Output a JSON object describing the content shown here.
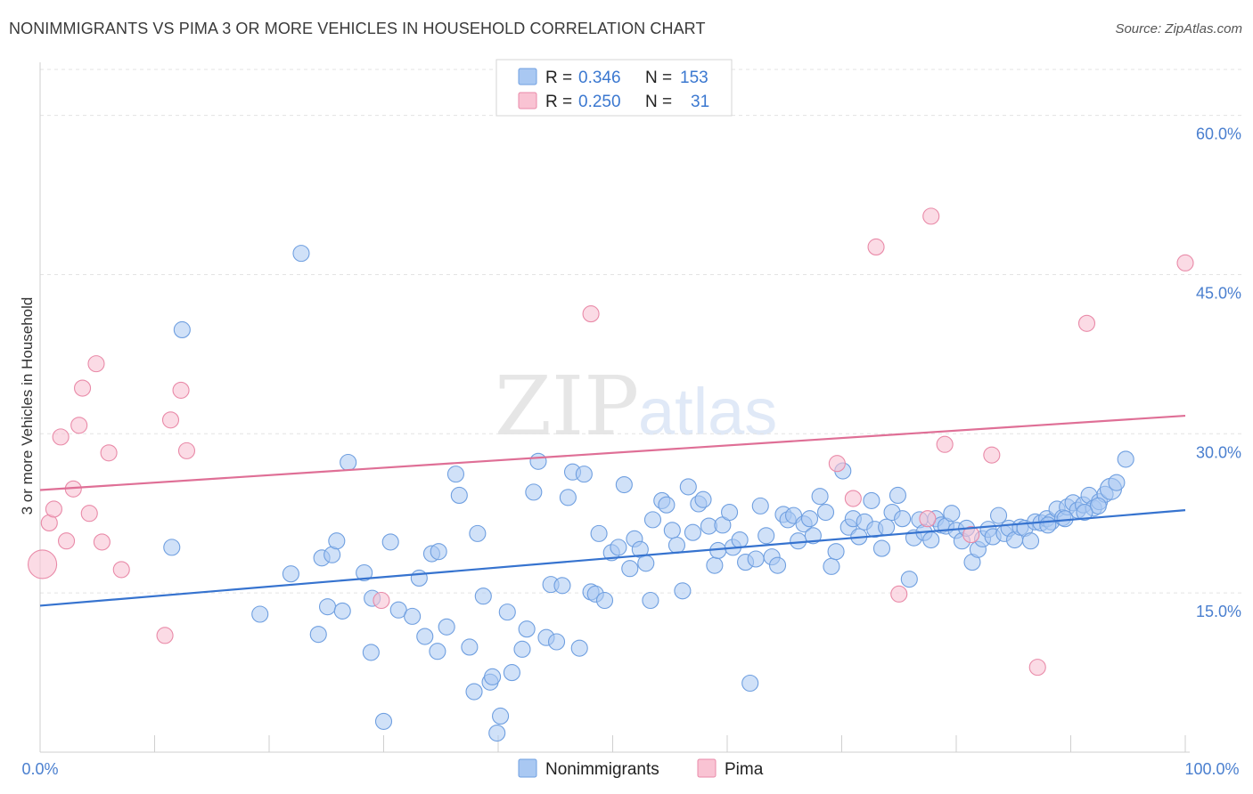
{
  "title": "NONIMMIGRANTS VS PIMA 3 OR MORE VEHICLES IN HOUSEHOLD CORRELATION CHART",
  "source": "Source: ZipAtlas.com",
  "watermark": {
    "part1": "ZIP",
    "part2": "atlas"
  },
  "legend": {
    "rows": [
      {
        "r_label": "R =",
        "r_value": "0.346",
        "n_label": "N =",
        "n_value": "153",
        "color": "#a9c8f2",
        "stroke": "#6f9fe0"
      },
      {
        "r_label": "R =",
        "r_value": "0.250",
        "n_label": "N =",
        "n_value": "31",
        "color": "#f9c3d3",
        "stroke": "#e98aa8"
      }
    ]
  },
  "bottom_legend": [
    {
      "label": "Nonimmigrants",
      "color": "#a9c8f2",
      "stroke": "#6f9fe0"
    },
    {
      "label": "Pima",
      "color": "#f9c3d3",
      "stroke": "#e98aa8"
    }
  ],
  "chart_data": {
    "type": "scatter",
    "title": "NONIMMIGRANTS VS PIMA 3 OR MORE VEHICLES IN HOUSEHOLD CORRELATION CHART",
    "xlabel": "",
    "ylabel": "3 or more Vehicles in Household",
    "xlim": [
      0,
      100
    ],
    "ylim": [
      0,
      65
    ],
    "x_tick_labels": [
      "0.0%",
      "100.0%"
    ],
    "y_ticks": [
      15,
      30,
      45,
      60
    ],
    "y_tick_labels": [
      "15.0%",
      "30.0%",
      "45.0%",
      "60.0%"
    ],
    "grid": true,
    "legend_position": "top-center",
    "series": [
      {
        "name": "Nonimmigrants",
        "color": "#6f9fe0",
        "fill": "#a9c8f2",
        "trend": {
          "x": [
            0,
            100
          ],
          "y": [
            13.8,
            22.8
          ]
        },
        "points": [
          [
            11.5,
            19.3
          ],
          [
            22.8,
            47.0
          ],
          [
            12.4,
            39.8
          ],
          [
            19.2,
            13.0
          ],
          [
            21.9,
            16.8
          ],
          [
            24.3,
            11.1
          ],
          [
            24.6,
            18.3
          ],
          [
            25.5,
            18.6
          ],
          [
            25.1,
            13.7
          ],
          [
            26.4,
            13.3
          ],
          [
            25.9,
            19.9
          ],
          [
            26.9,
            27.3
          ],
          [
            28.3,
            16.9
          ],
          [
            29.0,
            14.5
          ],
          [
            28.9,
            9.4
          ],
          [
            30.0,
            2.9
          ],
          [
            30.6,
            19.8
          ],
          [
            31.3,
            13.4
          ],
          [
            32.5,
            12.8
          ],
          [
            33.1,
            16.4
          ],
          [
            33.6,
            10.9
          ],
          [
            34.2,
            18.7
          ],
          [
            34.8,
            18.9
          ],
          [
            34.7,
            9.5
          ],
          [
            35.5,
            11.8
          ],
          [
            36.3,
            26.2
          ],
          [
            36.6,
            24.2
          ],
          [
            37.5,
            9.9
          ],
          [
            37.9,
            5.7
          ],
          [
            38.2,
            20.6
          ],
          [
            38.7,
            14.7
          ],
          [
            39.3,
            6.6
          ],
          [
            39.5,
            7.1
          ],
          [
            40.2,
            3.4
          ],
          [
            39.9,
            1.8
          ],
          [
            40.8,
            13.2
          ],
          [
            41.2,
            7.5
          ],
          [
            42.1,
            9.7
          ],
          [
            42.5,
            11.6
          ],
          [
            43.1,
            24.5
          ],
          [
            43.5,
            27.4
          ],
          [
            44.2,
            10.8
          ],
          [
            44.6,
            15.8
          ],
          [
            45.1,
            10.4
          ],
          [
            45.6,
            15.7
          ],
          [
            46.1,
            24.0
          ],
          [
            46.5,
            26.4
          ],
          [
            47.1,
            9.8
          ],
          [
            47.5,
            26.2
          ],
          [
            48.1,
            15.1
          ],
          [
            48.5,
            14.9
          ],
          [
            48.8,
            20.6
          ],
          [
            49.3,
            14.3
          ],
          [
            49.9,
            18.8
          ],
          [
            50.5,
            19.3
          ],
          [
            51.0,
            25.2
          ],
          [
            51.5,
            17.3
          ],
          [
            51.9,
            20.1
          ],
          [
            52.4,
            19.1
          ],
          [
            52.9,
            17.8
          ],
          [
            53.3,
            14.3
          ],
          [
            53.5,
            21.9
          ],
          [
            54.3,
            23.7
          ],
          [
            54.7,
            23.3
          ],
          [
            55.2,
            20.9
          ],
          [
            55.6,
            19.5
          ],
          [
            56.1,
            15.2
          ],
          [
            56.6,
            25.0
          ],
          [
            57.0,
            20.7
          ],
          [
            57.5,
            23.4
          ],
          [
            57.9,
            23.8
          ],
          [
            58.4,
            21.3
          ],
          [
            58.9,
            17.6
          ],
          [
            59.2,
            19.0
          ],
          [
            59.6,
            21.4
          ],
          [
            60.2,
            22.6
          ],
          [
            60.5,
            19.3
          ],
          [
            61.1,
            20.0
          ],
          [
            61.6,
            17.9
          ],
          [
            62.0,
            6.5
          ],
          [
            62.5,
            18.2
          ],
          [
            62.9,
            23.2
          ],
          [
            63.4,
            20.4
          ],
          [
            63.9,
            18.4
          ],
          [
            64.4,
            17.6
          ],
          [
            64.9,
            22.4
          ],
          [
            65.3,
            21.9
          ],
          [
            65.8,
            22.3
          ],
          [
            66.2,
            19.9
          ],
          [
            66.7,
            21.5
          ],
          [
            67.2,
            22.0
          ],
          [
            67.5,
            20.4
          ],
          [
            68.1,
            24.1
          ],
          [
            68.6,
            22.6
          ],
          [
            69.1,
            17.5
          ],
          [
            69.5,
            18.9
          ],
          [
            70.1,
            26.5
          ],
          [
            70.6,
            21.2
          ],
          [
            71.0,
            22.0
          ],
          [
            71.5,
            20.3
          ],
          [
            72.0,
            21.7
          ],
          [
            72.6,
            23.7
          ],
          [
            72.9,
            21.0
          ],
          [
            73.5,
            19.2
          ],
          [
            73.9,
            21.2
          ],
          [
            74.4,
            22.6
          ],
          [
            74.9,
            24.2
          ],
          [
            75.3,
            22.0
          ],
          [
            75.9,
            16.3
          ],
          [
            76.3,
            20.2
          ],
          [
            76.8,
            21.9
          ],
          [
            77.2,
            20.7
          ],
          [
            77.8,
            20.0
          ],
          [
            78.2,
            22.0
          ],
          [
            78.7,
            21.4
          ],
          [
            79.1,
            21.3
          ],
          [
            79.6,
            22.5
          ],
          [
            80.0,
            20.9
          ],
          [
            80.5,
            19.9
          ],
          [
            80.9,
            21.1
          ],
          [
            81.4,
            17.9
          ],
          [
            81.9,
            19.1
          ],
          [
            82.3,
            20.1
          ],
          [
            82.8,
            21.0
          ],
          [
            83.2,
            20.3
          ],
          [
            83.7,
            22.3
          ],
          [
            84.2,
            20.6
          ],
          [
            84.6,
            21.1
          ],
          [
            85.1,
            20.0
          ],
          [
            85.6,
            21.2
          ],
          [
            86.0,
            21.1
          ],
          [
            86.5,
            19.9
          ],
          [
            86.9,
            21.7
          ],
          [
            87.4,
            21.6
          ],
          [
            87.9,
            22.0
          ],
          [
            88.3,
            21.7
          ],
          [
            88.8,
            22.9
          ],
          [
            89.3,
            22.1
          ],
          [
            89.7,
            23.1
          ],
          [
            90.2,
            23.5
          ],
          [
            90.6,
            22.8
          ],
          [
            91.1,
            23.3
          ],
          [
            91.6,
            24.2
          ],
          [
            92.0,
            23.0
          ],
          [
            92.5,
            23.6
          ],
          [
            93.0,
            24.3
          ],
          [
            93.5,
            24.8
          ],
          [
            94.0,
            25.4
          ],
          [
            94.8,
            27.6
          ],
          [
            92.4,
            23.2
          ],
          [
            91.2,
            22.6
          ],
          [
            89.5,
            22.0
          ],
          [
            88.0,
            21.4
          ]
        ]
      },
      {
        "name": "Pima",
        "color": "#e98aa8",
        "fill": "#f9c3d3",
        "trend": {
          "x": [
            0,
            100
          ],
          "y": [
            24.7,
            31.7
          ]
        },
        "points": [
          [
            0.2,
            17.7
          ],
          [
            0.8,
            21.6
          ],
          [
            1.2,
            22.9
          ],
          [
            1.8,
            29.7
          ],
          [
            2.3,
            19.9
          ],
          [
            2.9,
            24.8
          ],
          [
            3.4,
            30.8
          ],
          [
            3.7,
            34.3
          ],
          [
            4.3,
            22.5
          ],
          [
            4.9,
            36.6
          ],
          [
            5.4,
            19.8
          ],
          [
            6.0,
            28.2
          ],
          [
            7.1,
            17.2
          ],
          [
            10.9,
            11.0
          ],
          [
            11.4,
            31.3
          ],
          [
            12.3,
            34.1
          ],
          [
            12.8,
            28.4
          ],
          [
            29.8,
            14.3
          ],
          [
            48.1,
            41.3
          ],
          [
            69.6,
            27.2
          ],
          [
            71.0,
            23.9
          ],
          [
            73.0,
            47.6
          ],
          [
            75.0,
            14.9
          ],
          [
            77.5,
            22.0
          ],
          [
            77.8,
            50.5
          ],
          [
            79.0,
            29.0
          ],
          [
            81.3,
            20.5
          ],
          [
            83.1,
            28.0
          ],
          [
            87.1,
            8.0
          ],
          [
            91.4,
            40.4
          ],
          [
            100.0,
            46.1
          ]
        ]
      }
    ]
  }
}
